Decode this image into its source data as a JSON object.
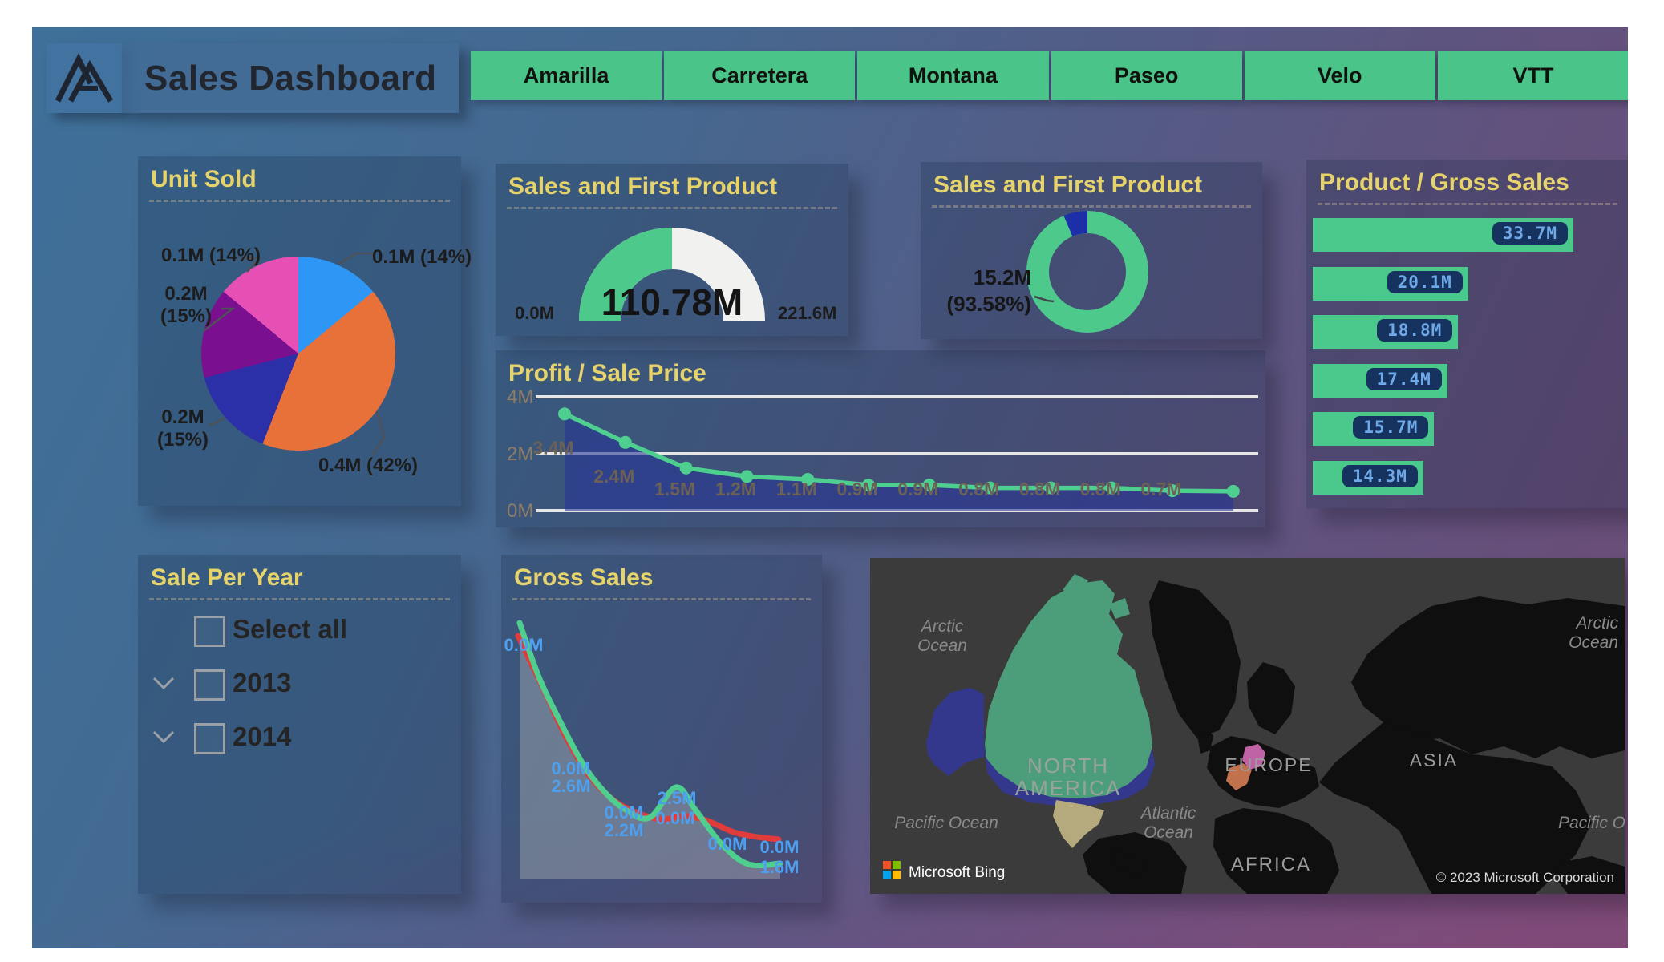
{
  "header": {
    "title": "Sales Dashboard",
    "logo": "mountain-monogram-icon"
  },
  "nav_buttons": [
    "Amarilla",
    "Carretera",
    "Montana",
    "Paseo",
    "Velo",
    "VTT"
  ],
  "colors": {
    "accent_green": "#4BC98C",
    "title_yellow": "#E7D36B",
    "chip_bg": "#16335F",
    "chip_text": "#6FA9E8",
    "profit_fill_blue": "#26349A",
    "gross_red": "#E23B3B",
    "label_blue": "#4D9FF0"
  },
  "panels": {
    "unit_sold": {
      "title": "Unit Sold",
      "chart_data": {
        "type": "pie",
        "slices": [
          {
            "label": "0.1M (14%)",
            "value": 0.1,
            "pct": 14,
            "color": "#2E96F5"
          },
          {
            "label": "0.4M (42%)",
            "value": 0.4,
            "pct": 42,
            "color": "#E8713A"
          },
          {
            "label": "0.2M (15%)",
            "value": 0.2,
            "pct": 15,
            "color": "#2B2FA8"
          },
          {
            "label": "0.2M (15%)",
            "value": 0.2,
            "pct": 15,
            "color": "#7A1090"
          },
          {
            "label": "0.1M (14%)",
            "value": 0.1,
            "pct": 14,
            "color": "#E64FB3"
          }
        ]
      }
    },
    "sales_gauge": {
      "title": "Sales and First Product",
      "chart_data": {
        "type": "gauge",
        "min": 0,
        "max": 221.6,
        "value": 110.78,
        "min_label": "0.0M",
        "max_label": "221.6M",
        "value_label": "110.78M"
      }
    },
    "sales_donut": {
      "title": "Sales and First Product",
      "chart_data": {
        "type": "donut",
        "slices": [
          {
            "pct": 93.58,
            "color": "#4DC98B",
            "label": "15.2M (93.58%)"
          },
          {
            "pct": 6.42,
            "color": "#1D2FA8"
          }
        ],
        "callout_line1": "15.2M",
        "callout_line2": "(93.58%)"
      }
    },
    "profit": {
      "title": "Profit / Sale Price",
      "chart_data": {
        "type": "line",
        "ylim": [
          0,
          4
        ],
        "y_ticks": [
          "4M",
          "2M",
          "0M"
        ],
        "values": [
          3.4,
          2.4,
          1.5,
          1.2,
          1.1,
          0.9,
          0.9,
          0.8,
          0.8,
          0.8,
          0.7,
          0.68
        ],
        "labels": [
          "3.4M",
          "2.4M",
          "1.5M",
          "1.2M",
          "1.1M",
          "0.9M",
          "0.9M",
          "0.8M",
          "0.8M",
          "0.8M",
          "0.7M",
          ""
        ]
      }
    },
    "gross_bars": {
      "title": "Product / Gross Sales",
      "chart_data": {
        "type": "bar",
        "values": [
          33.7,
          20.1,
          18.8,
          17.4,
          15.7,
          14.3
        ],
        "labels": [
          "33.7M",
          "20.1M",
          "18.8M",
          "17.4M",
          "15.7M",
          "14.3M"
        ]
      }
    },
    "year_slicer": {
      "title": "Sale Per Year",
      "items": [
        {
          "label": "Select all",
          "checked": false,
          "expandable": false
        },
        {
          "label": "2013",
          "checked": false,
          "expandable": true
        },
        {
          "label": "2014",
          "checked": false,
          "expandable": true
        }
      ]
    },
    "gross_sales": {
      "title": "Gross Sales",
      "chart_data": {
        "type": "line",
        "series": [
          {
            "name": "green",
            "color": "#4FCF8F"
          },
          {
            "name": "red",
            "color": "#E23B3B"
          }
        ],
        "point_labels": [
          "0.0M",
          "0.0M",
          "2.6M",
          "0.0M",
          "2.2M",
          "2.5M",
          "0.0M",
          "0.0M",
          "0.0M",
          "1.6M"
        ]
      }
    },
    "map": {
      "labels": {
        "arctic_left": [
          "Arctic",
          "Ocean"
        ],
        "arctic_right": [
          "Arctic",
          "Ocean"
        ],
        "pacific_left": "Pacific Ocean",
        "atlantic": [
          "Atlantic",
          "Ocean"
        ],
        "pacific_right": "Pacific Oce",
        "north_america": [
          "NORTH",
          "AMERICA"
        ],
        "europe": "EUROPE",
        "asia": "ASIA",
        "africa": "AFRICA"
      },
      "bing": "Microsoft Bing",
      "attribution": "© 2023 Microsoft Corporation",
      "highlight_colors": {
        "canada": "#4C9E7B",
        "usa_alaska": "#34388D",
        "mexico": "#B4AA7D",
        "germany": "#BF62A6",
        "france": "#C1714B"
      }
    }
  }
}
